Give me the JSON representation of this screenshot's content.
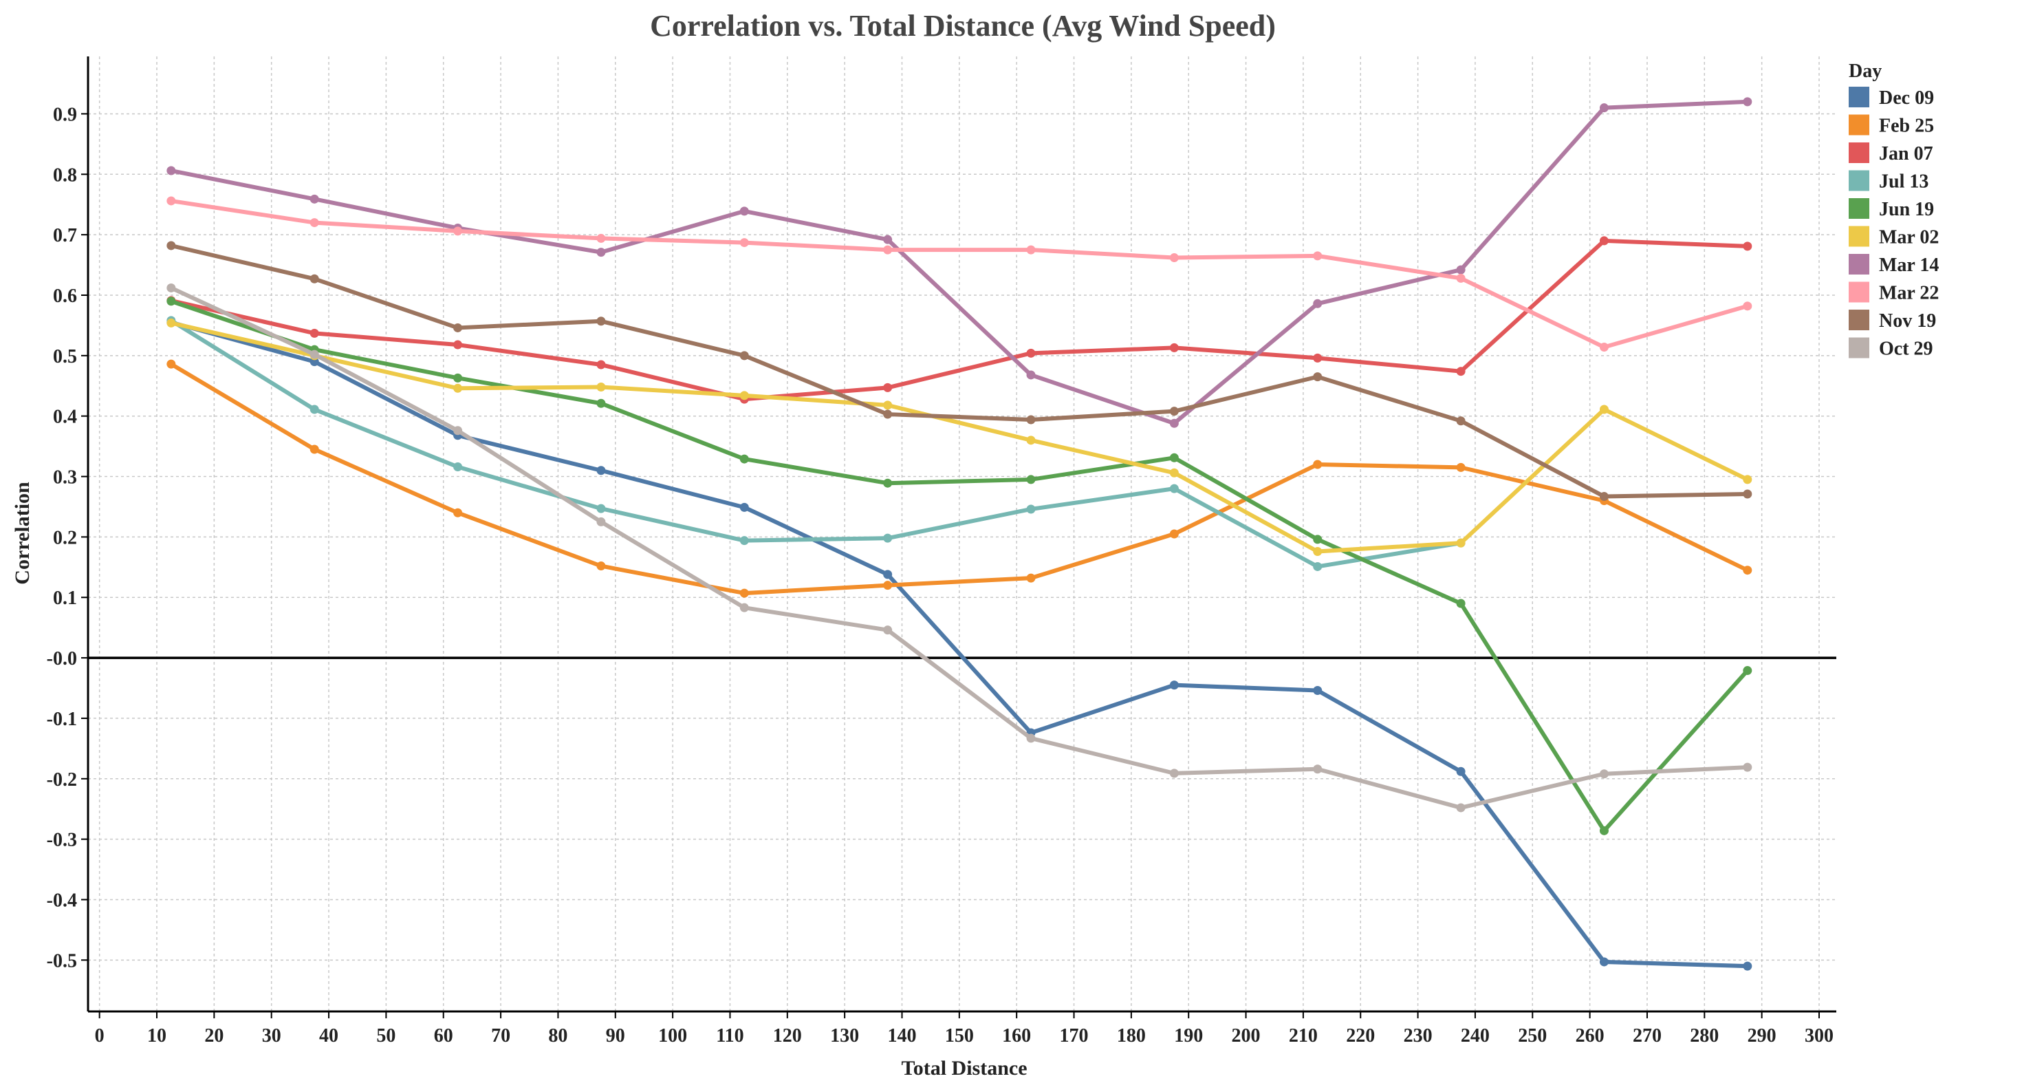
{
  "chart_data": {
    "type": "line",
    "title": "Correlation vs. Total Distance (Avg Wind Speed)",
    "xlabel": "Total Distance",
    "ylabel": "Correlation",
    "xlim": [
      -2,
      303
    ],
    "ylim": [
      -0.585,
      0.995
    ],
    "xticks": [
      0,
      10,
      20,
      30,
      40,
      50,
      60,
      70,
      80,
      90,
      100,
      110,
      120,
      130,
      140,
      150,
      160,
      170,
      180,
      190,
      200,
      210,
      220,
      230,
      240,
      250,
      260,
      270,
      280,
      290,
      300
    ],
    "yticks": [
      0.9,
      0.8,
      0.7,
      0.6,
      0.5,
      0.4,
      0.3,
      0.2,
      0.1,
      0.0,
      -0.1,
      -0.2,
      -0.3,
      -0.4,
      -0.5
    ],
    "ytick_labels": [
      "0.9",
      "0.8",
      "0.7",
      "0.6",
      "0.5",
      "0.4",
      "0.3",
      "0.2",
      "0.1",
      "-0.0",
      "-0.1",
      "-0.2",
      "-0.3",
      "-0.4",
      "-0.5"
    ],
    "grid": true,
    "reference_line_y": 0,
    "legend_title": "Day",
    "legend_position": "top-right",
    "x": [
      12.5,
      37.5,
      62.5,
      87.5,
      112.5,
      137.5,
      162.5,
      187.5,
      212.5,
      237.5,
      262.5,
      287.5
    ],
    "series": [
      {
        "name": "Dec 09",
        "color": "#4e79a7",
        "values": [
          0.555,
          0.49,
          0.368,
          0.31,
          0.249,
          0.138,
          -0.124,
          -0.045,
          -0.054,
          -0.188,
          -0.503,
          -0.51
        ]
      },
      {
        "name": "Feb 25",
        "color": "#f28e2b",
        "values": [
          0.486,
          0.345,
          0.24,
          0.152,
          0.107,
          0.12,
          0.132,
          0.205,
          0.32,
          0.315,
          0.26,
          0.145
        ]
      },
      {
        "name": "Jan 07",
        "color": "#e15759",
        "values": [
          0.591,
          0.537,
          0.518,
          0.485,
          0.428,
          0.447,
          0.504,
          0.513,
          0.496,
          0.474,
          0.69,
          0.681
        ]
      },
      {
        "name": "Jul 13",
        "color": "#76b7b2",
        "values": [
          0.558,
          0.411,
          0.316,
          0.247,
          0.194,
          0.198,
          0.246,
          0.28,
          0.151,
          0.19,
          null,
          null
        ]
      },
      {
        "name": "Jun 19",
        "color": "#59a14f",
        "values": [
          0.59,
          0.51,
          0.463,
          0.421,
          0.329,
          0.289,
          0.295,
          0.331,
          0.196,
          0.09,
          -0.286,
          -0.021
        ]
      },
      {
        "name": "Mar 02",
        "color": "#edc948",
        "values": [
          0.554,
          0.5,
          0.446,
          0.448,
          0.434,
          0.418,
          0.36,
          0.306,
          0.176,
          0.19,
          0.411,
          0.295
        ]
      },
      {
        "name": "Mar 14",
        "color": "#b07aa1",
        "values": [
          0.806,
          0.759,
          0.711,
          0.671,
          0.739,
          0.692,
          0.468,
          0.388,
          0.586,
          0.642,
          0.91,
          0.92
        ]
      },
      {
        "name": "Mar 22",
        "color": "#ff9da7",
        "values": [
          0.756,
          0.72,
          0.706,
          0.694,
          0.687,
          0.675,
          0.675,
          0.662,
          0.665,
          0.628,
          0.514,
          0.582
        ]
      },
      {
        "name": "Nov 19",
        "color": "#9c755f",
        "values": [
          0.682,
          0.627,
          0.546,
          0.557,
          0.5,
          0.403,
          0.394,
          0.408,
          0.465,
          0.392,
          0.267,
          0.271
        ]
      },
      {
        "name": "Oct 29",
        "color": "#bab0ac",
        "values": [
          0.612,
          0.502,
          0.376,
          0.225,
          0.083,
          0.046,
          -0.133,
          -0.191,
          -0.184,
          -0.248,
          -0.192,
          -0.181
        ]
      }
    ]
  }
}
